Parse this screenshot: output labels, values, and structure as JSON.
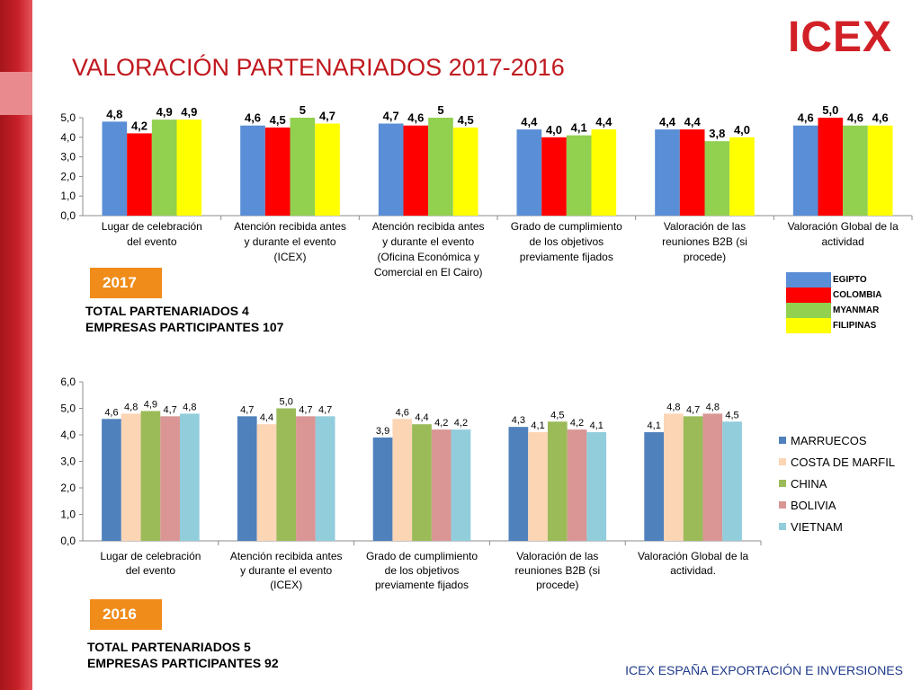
{
  "logo": {
    "text_main": "ICEX",
    "brand_color": "#d22027",
    "accent_color": "#f2a900"
  },
  "title": "VALORACIÓN PARTENARIADOS  2017-2016",
  "colors": {
    "title": "#c0181e",
    "badge": "#f08c1a",
    "footer": "#1f3a8a"
  },
  "section_2017": {
    "badge": "2017",
    "totals_line1": "TOTAL PARTENARIADOS 4",
    "totals_line2": "EMPRESAS PARTICIPANTES 107"
  },
  "section_2016": {
    "badge": "2016",
    "totals_line1": "TOTAL PARTENARIADOS 5",
    "totals_line2": "EMPRESAS PARTICIPANTES 92"
  },
  "footer": "ICEX ESPAÑA EXPORTACIÓN E INVERSIONES",
  "chart_data": [
    {
      "type": "bar",
      "title": "2017",
      "ylim": [
        0,
        5
      ],
      "yticks": [
        "0,0",
        "1,0",
        "2,0",
        "3,0",
        "4,0",
        "5,0"
      ],
      "grid": false,
      "legend_position": "right",
      "categories": [
        [
          "Lugar de celebración",
          "del evento"
        ],
        [
          "Atención recibida antes",
          "y durante el evento",
          "(ICEX)"
        ],
        [
          "Atención recibida antes",
          "y durante el evento",
          "(Oficina Económica y",
          "Comercial en El Cairo)"
        ],
        [
          "Grado de cumplimiento",
          "de los objetivos",
          "previamente fijados"
        ],
        [
          "Valoración de las",
          "reuniones B2B (si",
          "procede)"
        ],
        [
          "Valoración Global de la",
          "actividad"
        ]
      ],
      "series": [
        {
          "name": "EGIPTO",
          "color": "#5a8ed6",
          "values": [
            4.8,
            4.6,
            4.7,
            4.4,
            4.4,
            4.6
          ],
          "labels": [
            "4,8",
            "4,6",
            "4,7",
            "4,4",
            "4,4",
            "4,6"
          ]
        },
        {
          "name": "COLOMBIA",
          "color": "#ff0000",
          "values": [
            4.2,
            4.5,
            4.6,
            4.0,
            4.4,
            5.0
          ],
          "labels": [
            "4,2",
            "4,5",
            "4,6",
            "4,0",
            "4,4",
            "5,0"
          ]
        },
        {
          "name": "MYANMAR",
          "color": "#92d050",
          "values": [
            4.9,
            5.0,
            5.0,
            4.1,
            3.8,
            4.6
          ],
          "labels": [
            "4,9",
            "5",
            "5",
            "4,1",
            "3,8",
            "4,6"
          ]
        },
        {
          "name": "FILIPINAS",
          "color": "#ffff00",
          "values": [
            4.9,
            4.7,
            4.5,
            4.4,
            4.0,
            4.6
          ],
          "labels": [
            "4,9",
            "4,7",
            "4,5",
            "4,4",
            "4,0",
            "4,6"
          ]
        }
      ]
    },
    {
      "type": "bar",
      "title": "2016",
      "ylim": [
        0,
        6
      ],
      "yticks": [
        "0,0",
        "1,0",
        "2,0",
        "3,0",
        "4,0",
        "5,0",
        "6,0"
      ],
      "grid": false,
      "legend_position": "right",
      "categories": [
        [
          "Lugar de celebración",
          "del evento"
        ],
        [
          "Atención recibida antes",
          "y durante el evento",
          "(ICEX)"
        ],
        [
          "Grado de cumplimiento",
          "de los objetivos",
          "previamente fijados"
        ],
        [
          "Valoración de las",
          "reuniones B2B (si",
          "procede)"
        ],
        [
          "Valoración Global de la",
          "actividad."
        ]
      ],
      "series": [
        {
          "name": "MARRUECOS",
          "color": "#4f81bd",
          "values": [
            4.6,
            4.7,
            3.9,
            4.3,
            4.1
          ],
          "labels": [
            "4,6",
            "4,7",
            "3,9",
            "4,3",
            "4,1"
          ]
        },
        {
          "name": "COSTA DE MARFIL",
          "color": "#fcd5b5",
          "values": [
            4.8,
            4.4,
            4.6,
            4.1,
            4.8
          ],
          "labels": [
            "4,8",
            "4,4",
            "4,6",
            "4,1",
            "4,8"
          ]
        },
        {
          "name": "CHINA",
          "color": "#9bbb59",
          "values": [
            4.9,
            5.0,
            4.4,
            4.5,
            4.7
          ],
          "labels": [
            "4,9",
            "5,0",
            "4,4",
            "4,5",
            "4,7"
          ]
        },
        {
          "name": "BOLIVIA",
          "color": "#d99694",
          "values": [
            4.7,
            4.7,
            4.2,
            4.2,
            4.8
          ],
          "labels": [
            "4,7",
            "4,7",
            "4,2",
            "4,2",
            "4,8"
          ]
        },
        {
          "name": "VIETNAM",
          "color": "#92cddc",
          "values": [
            4.8,
            4.7,
            4.2,
            4.1,
            4.5
          ],
          "labels": [
            "4,8",
            "4,7",
            "4,2",
            "4,1",
            "4,5"
          ]
        }
      ]
    }
  ]
}
